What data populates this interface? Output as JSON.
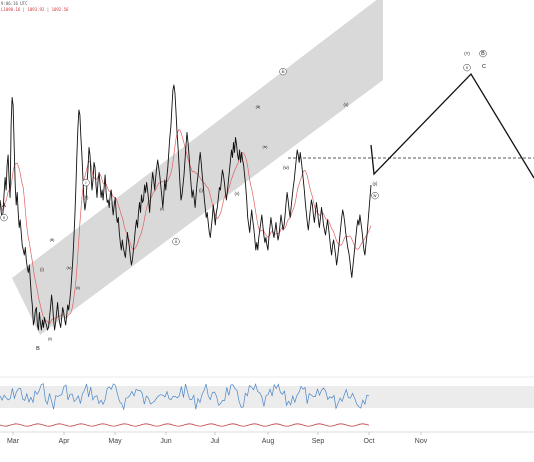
{
  "header": {
    "time_line": "9:06:16 UTC",
    "ohlc_line": "L1090.16 | 1093.92 | 1092.56"
  },
  "colors": {
    "price": "#111111",
    "moving_average": "#e06060",
    "channel_fill": "#d9d9d9",
    "projection": "#111111",
    "oscillator": "#4a86c8",
    "oscillator_band": "#ececec",
    "lower_line": "#c04040"
  },
  "chart_data": {
    "type": "line",
    "x_axis": {
      "ticks": [
        "Mar",
        "Apr",
        "May",
        "Jun",
        "Jul",
        "Aug",
        "Sep",
        "Oct",
        "Nov"
      ]
    },
    "grid": false,
    "legend": "none",
    "series": [
      {
        "values": [
          0.54,
          0.5,
          0.46,
          0.49,
          0.56,
          0.63,
          0.58,
          0.68,
          0.72,
          0.62,
          0.55,
          0.84,
          0.95,
          0.92,
          0.75,
          0.6,
          0.52,
          0.57,
          0.49,
          0.43,
          0.46,
          0.41,
          0.36,
          0.34,
          0.32,
          0.35,
          0.3,
          0.27,
          0.25,
          0.28,
          0.22,
          0.16,
          0.12,
          0.04,
          0.06,
          0.1,
          0.11,
          0.04,
          0.02,
          0.09,
          0.05,
          0.02,
          0.06,
          0.03,
          0.07,
          0.05,
          0.04,
          0.02,
          0.03,
          0.07,
          0.11,
          0.16,
          0.12,
          0.06,
          0.02,
          0.05,
          0.09,
          0.13,
          0.08,
          0.05,
          0.03,
          0.07,
          0.11,
          0.09,
          0.06,
          0.04,
          0.08,
          0.12,
          0.1,
          0.14,
          0.18,
          0.24,
          0.3,
          0.38,
          0.47,
          0.58,
          0.71,
          0.82,
          0.9,
          0.88,
          0.79,
          0.72,
          0.63,
          0.54,
          0.5,
          0.53,
          0.6,
          0.66,
          0.75,
          0.72,
          0.64,
          0.58,
          0.62,
          0.69,
          0.67,
          0.6,
          0.55,
          0.62,
          0.65,
          0.6,
          0.55,
          0.58,
          0.54,
          0.59,
          0.64,
          0.57,
          0.53,
          0.54,
          0.51,
          0.56,
          0.58,
          0.52,
          0.48,
          0.52,
          0.55,
          0.48,
          0.45,
          0.47,
          0.41,
          0.37,
          0.34,
          0.38,
          0.35,
          0.33,
          0.31,
          0.36,
          0.41,
          0.38,
          0.35,
          0.31,
          0.28,
          0.3,
          0.34,
          0.38,
          0.43,
          0.46,
          0.43,
          0.49,
          0.53,
          0.49,
          0.56,
          0.53,
          0.54,
          0.6,
          0.57,
          0.61,
          0.58,
          0.54,
          0.49,
          0.55,
          0.6,
          0.65,
          0.62,
          0.58,
          0.63,
          0.67,
          0.7,
          0.67,
          0.64,
          0.6,
          0.56,
          0.51,
          0.56,
          0.62,
          0.58,
          0.63,
          0.67,
          0.73,
          0.79,
          0.83,
          0.91,
          0.98,
          1.0,
          0.97,
          0.9,
          0.82,
          0.76,
          0.69,
          0.61,
          0.54,
          0.56,
          0.6,
          0.64,
          0.7,
          0.76,
          0.81,
          0.77,
          0.72,
          0.66,
          0.6,
          0.55,
          0.58,
          0.55,
          0.51,
          0.56,
          0.61,
          0.64,
          0.69,
          0.73,
          0.69,
          0.64,
          0.6,
          0.55,
          0.51,
          0.47,
          0.49,
          0.45,
          0.41,
          0.39,
          0.43,
          0.47,
          0.52,
          0.48,
          0.44,
          0.49,
          0.51,
          0.55,
          0.59,
          0.58,
          0.62,
          0.66,
          0.64,
          0.61,
          0.57,
          0.54,
          0.58,
          0.62,
          0.66,
          0.7,
          0.74,
          0.71,
          0.77,
          0.73,
          0.79,
          0.76,
          0.72,
          0.7,
          0.74,
          0.69,
          0.73,
          0.7,
          0.68,
          0.64,
          0.6,
          0.54,
          0.47,
          0.44,
          0.41,
          0.46,
          0.5,
          0.46,
          0.43,
          0.39,
          0.34,
          0.37,
          0.34,
          0.39,
          0.42,
          0.45,
          0.48,
          0.44,
          0.4,
          0.37,
          0.39,
          0.36,
          0.34,
          0.39,
          0.43,
          0.47,
          0.44,
          0.41,
          0.39,
          0.42,
          0.45,
          0.41,
          0.38,
          0.4,
          0.44,
          0.48,
          0.45,
          0.42,
          0.44,
          0.48,
          0.53,
          0.57,
          0.54,
          0.5,
          0.47,
          0.51,
          0.55,
          0.59,
          0.62,
          0.66,
          0.7,
          0.74,
          0.72,
          0.69,
          0.73,
          0.7,
          0.66,
          0.62,
          0.58,
          0.53,
          0.49,
          0.45,
          0.42,
          0.46,
          0.5,
          0.54,
          0.52,
          0.48,
          0.45,
          0.49,
          0.53,
          0.5,
          0.46,
          0.43,
          0.47,
          0.51,
          0.48,
          0.44,
          0.42,
          0.4,
          0.43,
          0.46,
          0.43,
          0.39,
          0.35,
          0.32,
          0.36,
          0.38,
          0.35,
          0.32,
          0.28,
          0.31,
          0.35,
          0.39,
          0.43,
          0.47,
          0.5,
          0.48,
          0.45,
          0.41,
          0.38,
          0.35,
          0.33,
          0.3,
          0.26,
          0.23,
          0.27,
          0.31,
          0.35,
          0.39,
          0.43,
          0.46,
          0.44,
          0.48,
          0.45,
          0.42,
          0.38,
          0.34,
          0.32,
          0.36,
          0.4,
          0.45,
          0.5,
          0.55,
          0.6
        ]
      }
    ],
    "annotations": [
      {
        "label": "A",
        "style": "plain"
      },
      {
        "label": "v",
        "style": "circled"
      },
      {
        "label": "B",
        "style": "plain"
      },
      {
        "label": "i",
        "style": "circled"
      },
      {
        "label": "(ii)",
        "style": "plain"
      },
      {
        "label": "(i)",
        "style": "plain"
      },
      {
        "label": "(iii)",
        "style": "plain"
      },
      {
        "label": "(iv)",
        "style": "plain"
      },
      {
        "label": "(v)",
        "style": "plain"
      },
      {
        "label": "(ii)",
        "style": "plain"
      },
      {
        "label": "ii",
        "style": "circled"
      },
      {
        "label": "(i)",
        "style": "plain"
      },
      {
        "label": "(ii)",
        "style": "plain"
      },
      {
        "label": "(iii)",
        "style": "plain"
      },
      {
        "label": "(iv)",
        "style": "plain"
      },
      {
        "label": "(v)",
        "style": "plain"
      },
      {
        "label": "iii",
        "style": "circled"
      },
      {
        "label": "(w)",
        "style": "plain"
      },
      {
        "label": "(x)",
        "style": "plain"
      },
      {
        "label": "(y)",
        "style": "plain"
      },
      {
        "label": "iv",
        "style": "circled"
      },
      {
        "label": "(Y)",
        "style": "plain"
      },
      {
        "label": "B",
        "style": "circled"
      },
      {
        "label": "v",
        "style": "circled"
      },
      {
        "label": "C",
        "style": "plain"
      }
    ]
  }
}
